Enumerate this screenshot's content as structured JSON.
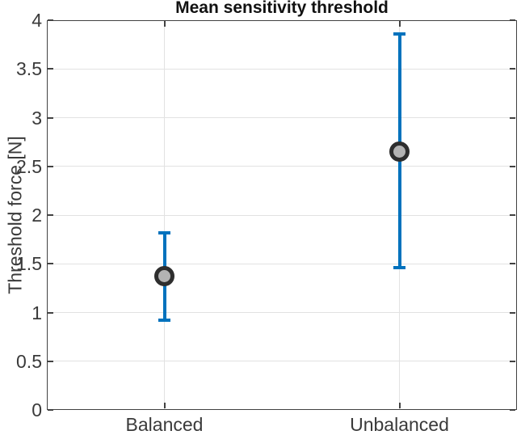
{
  "chart_data": {
    "type": "errorbar",
    "title": "Mean sensitivity threshold",
    "ylabel": "Threshold force [N]",
    "xlabel": "",
    "categories": [
      "Balanced",
      "Unbalanced"
    ],
    "points": [
      {
        "category": "Balanced",
        "mean": 1.37,
        "low": 0.92,
        "high": 1.82
      },
      {
        "category": "Unbalanced",
        "mean": 2.65,
        "low": 1.46,
        "high": 3.86
      }
    ],
    "ylim": [
      0,
      4
    ],
    "ytick_values": [
      0,
      0.5,
      1,
      1.5,
      2,
      2.5,
      3,
      3.5,
      4
    ],
    "ytick_labels": [
      "0",
      "0.5",
      "1",
      "1.5",
      "2",
      "2.5",
      "3",
      "3.5",
      "4"
    ],
    "grid": true,
    "legend_position": "none",
    "colors": {
      "errorbar": "#0072BD",
      "marker_face": "#b3b3b3",
      "marker_edge": "#2e2e2e",
      "gridline": "#e2e2e2",
      "axis_frame": "#424242",
      "tick_text": "#3a3a3a",
      "title_text": "#111111"
    }
  }
}
